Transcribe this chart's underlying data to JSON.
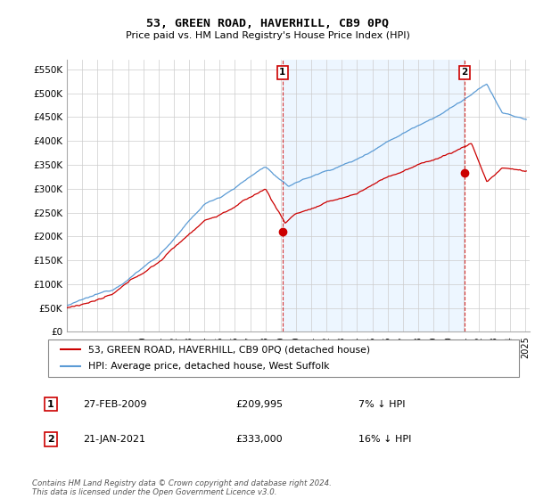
{
  "title": "53, GREEN ROAD, HAVERHILL, CB9 0PQ",
  "subtitle": "Price paid vs. HM Land Registry's House Price Index (HPI)",
  "ylabel_ticks": [
    "£0",
    "£50K",
    "£100K",
    "£150K",
    "£200K",
    "£250K",
    "£300K",
    "£350K",
    "£400K",
    "£450K",
    "£500K",
    "£550K"
  ],
  "ytick_values": [
    0,
    50000,
    100000,
    150000,
    200000,
    250000,
    300000,
    350000,
    400000,
    450000,
    500000,
    550000
  ],
  "ylim": [
    0,
    570000
  ],
  "xlim_start": 1995.0,
  "xlim_end": 2025.3,
  "hpi_color": "#5b9bd5",
  "hpi_fill_color": "#ddeeff",
  "price_color": "#cc0000",
  "marker1_date": 2009.12,
  "marker1_price": 209995,
  "marker2_date": 2021.05,
  "marker2_price": 333000,
  "legend_label1": "53, GREEN ROAD, HAVERHILL, CB9 0PQ (detached house)",
  "legend_label2": "HPI: Average price, detached house, West Suffolk",
  "annotation1_label": "1",
  "annotation1_date": "27-FEB-2009",
  "annotation1_price": "£209,995",
  "annotation1_note": "7% ↓ HPI",
  "annotation2_label": "2",
  "annotation2_date": "21-JAN-2021",
  "annotation2_price": "£333,000",
  "annotation2_note": "16% ↓ HPI",
  "footer": "Contains HM Land Registry data © Crown copyright and database right 2024.\nThis data is licensed under the Open Government Licence v3.0.",
  "bg_color": "#ffffff",
  "plot_bg_color": "#ffffff",
  "grid_color": "#cccccc"
}
